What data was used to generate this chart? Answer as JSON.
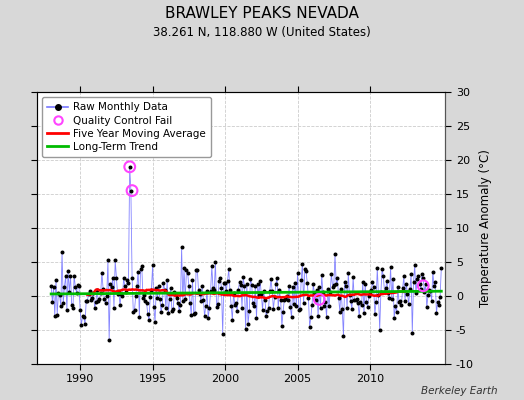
{
  "title": "BRAWLEY PEAKS NEVADA",
  "subtitle": "38.261 N, 118.880 W (United States)",
  "ylabel": "Temperature Anomaly (°C)",
  "credit": "Berkeley Earth",
  "xlim": [
    1987.0,
    2015.2
  ],
  "ylim": [
    -10,
    30
  ],
  "yticks_right": [
    -10,
    -5,
    0,
    5,
    10,
    15,
    20,
    25,
    30
  ],
  "xticks": [
    1990,
    1995,
    2000,
    2005,
    2010
  ],
  "fig_bg_color": "#d8d8d8",
  "plot_bg_color": "#ffffff",
  "raw_line_color": "#7777ff",
  "raw_marker_color": "#000000",
  "moving_avg_color": "#ff0000",
  "trend_color": "#00bb00",
  "qc_fail_color": "#ff44ff",
  "legend_entries": [
    "Raw Monthly Data",
    "Quality Control Fail",
    "Five Year Moving Average",
    "Long-Term Trend"
  ],
  "qc_fail_points": [
    [
      1993.42,
      19.0
    ],
    [
      1993.58,
      15.5
    ],
    [
      2006.5,
      -0.5
    ],
    [
      2013.67,
      1.5
    ]
  ],
  "seed": 12,
  "start_year": 1988,
  "end_year": 2015
}
